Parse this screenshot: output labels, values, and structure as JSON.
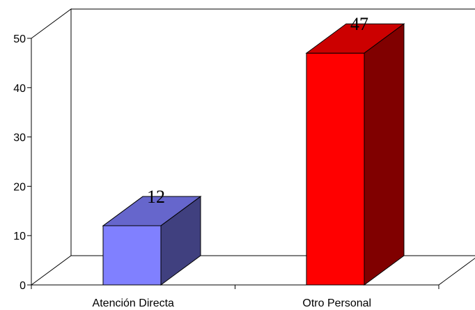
{
  "chart_data": {
    "type": "bar",
    "categories": [
      "Atención Directa",
      "Otro Personal"
    ],
    "series": [
      {
        "values": [
          12,
          47
        ]
      }
    ],
    "data_labels": [
      "12",
      "47"
    ],
    "colors": {
      "bar_fronts": [
        "#8080FF",
        "#FF0000"
      ],
      "bar_tops": [
        "#6666CC",
        "#CC0000"
      ],
      "bar_sides": [
        "#40407F",
        "#800000"
      ]
    },
    "ylim": [
      0,
      50
    ],
    "yticks": [
      "0",
      "10",
      "20",
      "30",
      "40",
      "50"
    ],
    "title": "",
    "xlabel": "",
    "ylabel": "",
    "grid": false,
    "legend": "none",
    "style": "3d-column"
  }
}
